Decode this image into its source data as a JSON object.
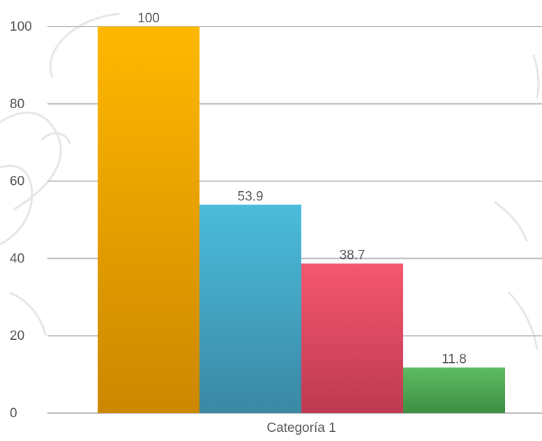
{
  "chart_data": {
    "type": "bar",
    "categories": [
      "Categoría 1"
    ],
    "series": [
      {
        "values": [
          100
        ],
        "color": "#f0a800"
      },
      {
        "values": [
          53.9
        ],
        "color": "#46b1d4"
      },
      {
        "values": [
          38.7
        ],
        "color": "#e44e66"
      },
      {
        "values": [
          11.8
        ],
        "color": "#4fad57"
      }
    ],
    "value_labels": [
      "100",
      "53.9",
      "38.7",
      "11.8"
    ],
    "y_ticks": [
      "0",
      "20",
      "40",
      "60",
      "80",
      "100"
    ],
    "ylim": [
      0,
      100
    ],
    "grid": true,
    "legend": "none",
    "colors": {
      "gridline": "#bdbdbd",
      "text": "#555555",
      "watermark": "#e6e6e6"
    }
  }
}
